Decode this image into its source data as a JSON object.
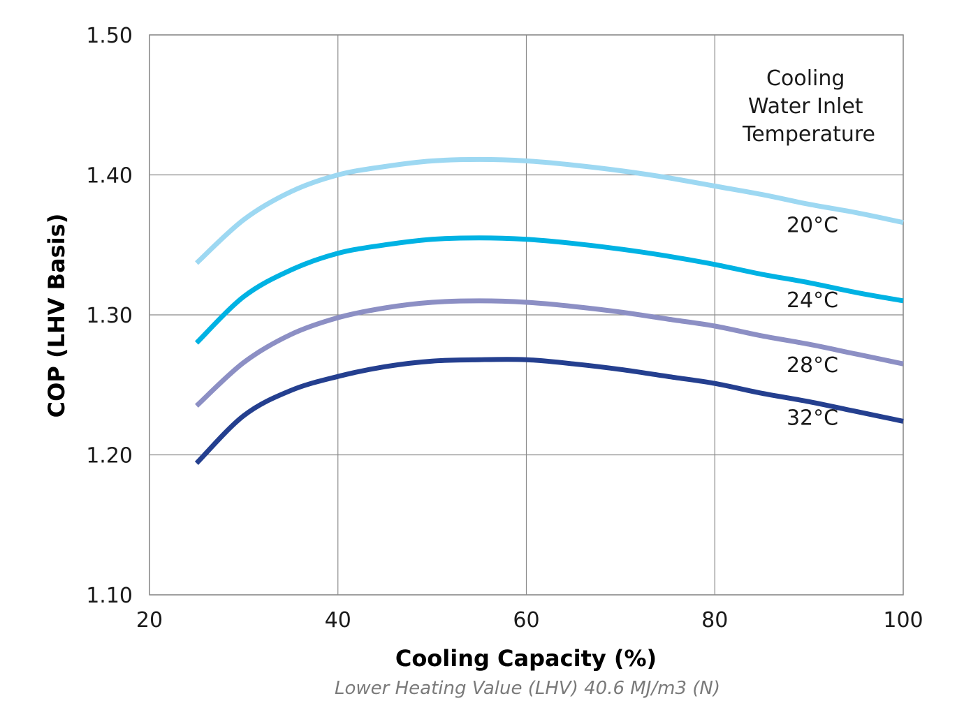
{
  "chart_data": {
    "type": "line",
    "xlabel": "Cooling Capacity (%)",
    "ylabel": "COP (LHV Basis)",
    "note": "Lower Heating Value (LHV) 40.6 MJ/m3 (N)",
    "xlim": [
      20,
      100
    ],
    "ylim": [
      1.1,
      1.5
    ],
    "x_ticks": [
      "20",
      "40",
      "60",
      "80",
      "100"
    ],
    "y_ticks": [
      "1.10",
      "1.20",
      "1.30",
      "1.40",
      "1.50"
    ],
    "grid": true,
    "legend_title": [
      "Cooling",
      "Water Inlet",
      "Temperature"
    ],
    "x": [
      25,
      30,
      35,
      40,
      45,
      50,
      55,
      60,
      65,
      70,
      75,
      80,
      85,
      90,
      95,
      100
    ],
    "series": [
      {
        "name": "20°C",
        "color": "#9dd8f2",
        "values": [
          1.337,
          1.368,
          1.388,
          1.4,
          1.406,
          1.41,
          1.411,
          1.41,
          1.407,
          1.403,
          1.398,
          1.392,
          1.386,
          1.379,
          1.373,
          1.366
        ]
      },
      {
        "name": "24°C",
        "color": "#00b2e3",
        "values": [
          1.28,
          1.313,
          1.332,
          1.344,
          1.35,
          1.354,
          1.355,
          1.354,
          1.351,
          1.347,
          1.342,
          1.336,
          1.329,
          1.323,
          1.316,
          1.31
        ]
      },
      {
        "name": "28°C",
        "color": "#8c8fc4",
        "values": [
          1.235,
          1.266,
          1.286,
          1.298,
          1.305,
          1.309,
          1.31,
          1.309,
          1.306,
          1.302,
          1.297,
          1.292,
          1.285,
          1.279,
          1.272,
          1.265
        ]
      },
      {
        "name": "32°C",
        "color": "#243f8f",
        "values": [
          1.194,
          1.228,
          1.246,
          1.256,
          1.263,
          1.267,
          1.268,
          1.268,
          1.265,
          1.261,
          1.256,
          1.251,
          1.244,
          1.238,
          1.231,
          1.224
        ]
      }
    ]
  }
}
